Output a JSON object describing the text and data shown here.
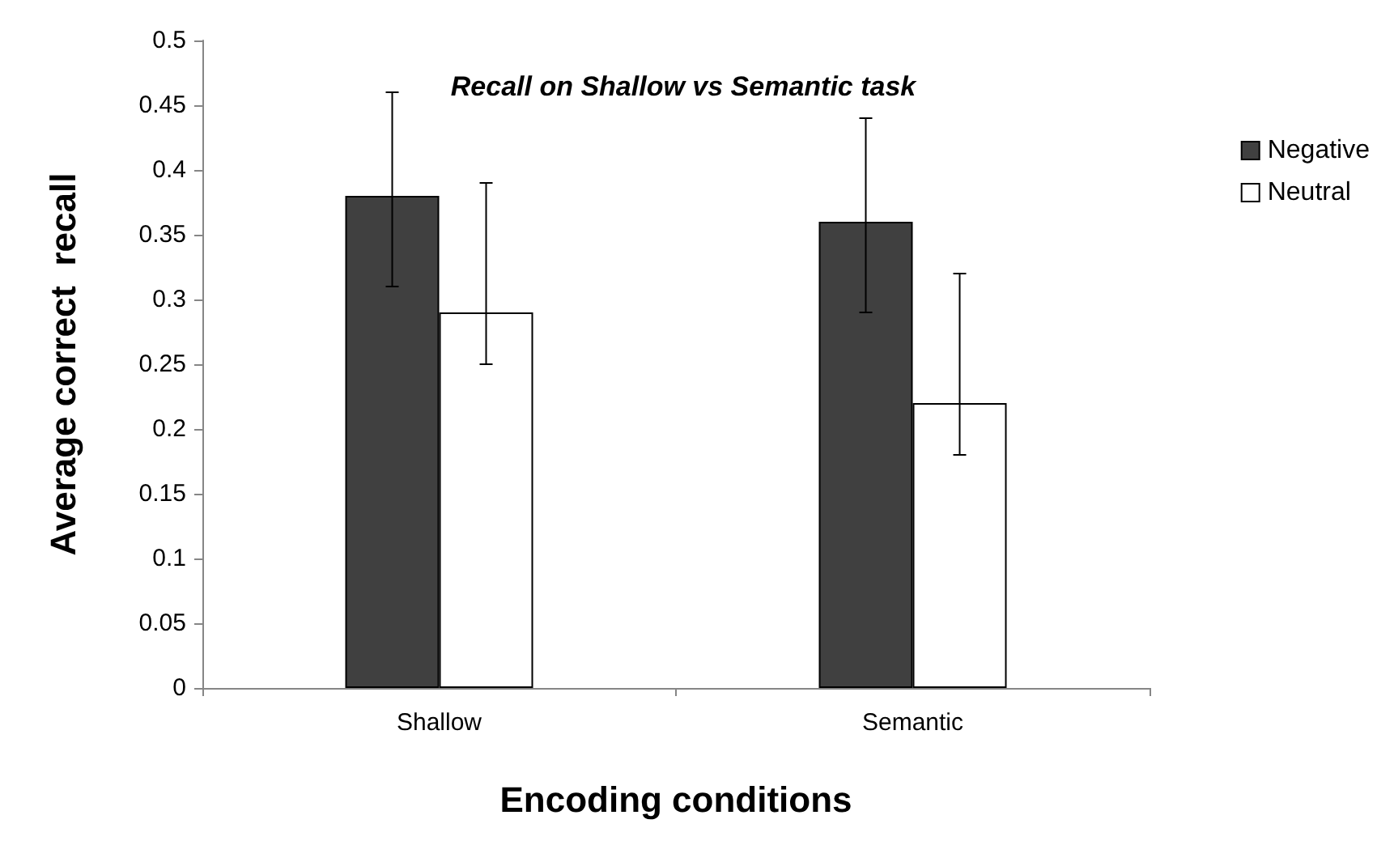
{
  "chart_data": {
    "type": "bar",
    "title": "Recall on Shallow vs Semantic task",
    "xlabel": "Encoding conditions",
    "ylabel": "Average correct  recall",
    "categories": [
      "Shallow",
      "Semantic"
    ],
    "series": [
      {
        "name": "Negative",
        "color": "#404040",
        "values": [
          0.38,
          0.36
        ],
        "errors": [
          [
            0.31,
            0.46
          ],
          [
            0.29,
            0.44
          ]
        ]
      },
      {
        "name": "Neutral",
        "color": "#ffffff",
        "values": [
          0.29,
          0.22
        ],
        "errors": [
          [
            0.25,
            0.39
          ],
          [
            0.18,
            0.32
          ]
        ]
      }
    ],
    "ylim": [
      0,
      0.5
    ],
    "yticks": [
      0,
      0.05,
      0.1,
      0.15,
      0.2,
      0.25,
      0.3,
      0.35,
      0.4,
      0.45,
      0.5
    ],
    "grid": false,
    "legend": "right"
  }
}
